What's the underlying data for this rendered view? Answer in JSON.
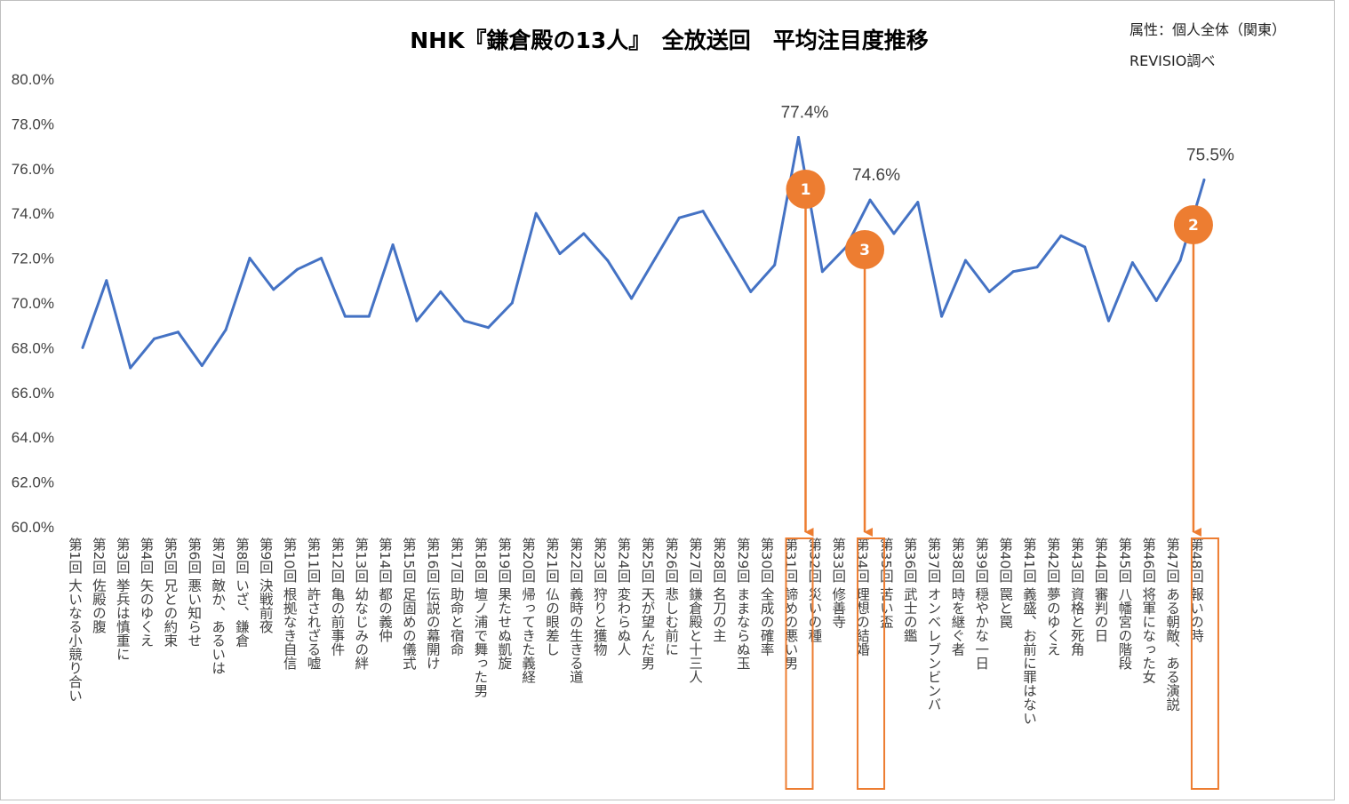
{
  "chart_data": {
    "type": "line",
    "title": "NHK『鎌倉殿の13人』　全放送回　平均注目度推移",
    "attribute_text": "属性：個人全体（関東）",
    "source_text": "REVISIO調べ",
    "ylim": [
      60.0,
      80.0
    ],
    "yticks": [
      "60.0%",
      "62.0%",
      "64.0%",
      "66.0%",
      "68.0%",
      "70.0%",
      "72.0%",
      "74.0%",
      "76.0%",
      "78.0%",
      "80.0%"
    ],
    "grid": false,
    "line_color": "#4472c4",
    "accent_color": "#ed7d31",
    "categories": [
      "第1回 大いなる小競り合い",
      "第2回 佐殿の腹",
      "第3回 挙兵は慎重に",
      "第4回 矢のゆくえ",
      "第5回 兄との約束",
      "第6回 悪い知らせ",
      "第7回 敵か、あるいは",
      "第8回 いざ、鎌倉",
      "第9回 決戦前夜",
      "第10回 根拠なき自信",
      "第11回 許されざる嘘",
      "第12回 亀の前事件",
      "第13回 幼なじみの絆",
      "第14回 都の義仲",
      "第15回 足固めの儀式",
      "第16回 伝説の幕開け",
      "第17回 助命と宿命",
      "第18回 壇ノ浦で舞った男",
      "第19回 果たせぬ凱旋",
      "第20回 帰ってきた義経",
      "第21回 仏の眼差し",
      "第22回 義時の生きる道",
      "第23回 狩りと獲物",
      "第24回 変わらぬ人",
      "第25回 天が望んだ男",
      "第26回 悲しむ前に",
      "第27回 鎌倉殿と十三人",
      "第28回 名刀の主",
      "第29回 ままならぬ玉",
      "第30回 全成の確率",
      "第31回 諦めの悪い男",
      "第32回 災いの種",
      "第33回 修善寺",
      "第34回 理想の結婚",
      "第35回 苦い盃",
      "第36回 武士の鑑",
      "第37回 オンベレブンビンバ",
      "第38回 時を継ぐ者",
      "第39回 穏やかな一日",
      "第40回 罠と罠",
      "第41回 義盛、お前に罪はない",
      "第42回 夢のゆくえ",
      "第43回 資格と死角",
      "第44回 審判の日",
      "第45回 八幡宮の階段",
      "第46回 将軍になった女",
      "第47回 ある朝敵、ある演説",
      "第48回 報いの時"
    ],
    "values": [
      68.0,
      71.0,
      67.1,
      68.4,
      68.7,
      67.2,
      68.8,
      72.0,
      70.6,
      71.5,
      72.0,
      69.4,
      69.4,
      72.6,
      69.2,
      70.5,
      69.2,
      68.9,
      70.0,
      74.0,
      72.2,
      73.1,
      71.9,
      70.2,
      72.0,
      73.8,
      74.1,
      72.3,
      70.5,
      71.7,
      77.4,
      71.4,
      72.5,
      74.6,
      73.1,
      74.5,
      69.4,
      71.9,
      70.5,
      71.4,
      71.6,
      73.0,
      72.5,
      69.2,
      71.8,
      70.1,
      71.9,
      75.5
    ],
    "value_labels": [
      {
        "index": 30,
        "text": "77.4%"
      },
      {
        "index": 33,
        "text": "74.6%"
      },
      {
        "index": 47,
        "text": "75.5%"
      }
    ],
    "markers": [
      {
        "label": "1",
        "index": 30
      },
      {
        "label": "3",
        "index": 33
      },
      {
        "label": "2",
        "index": 47
      }
    ]
  }
}
